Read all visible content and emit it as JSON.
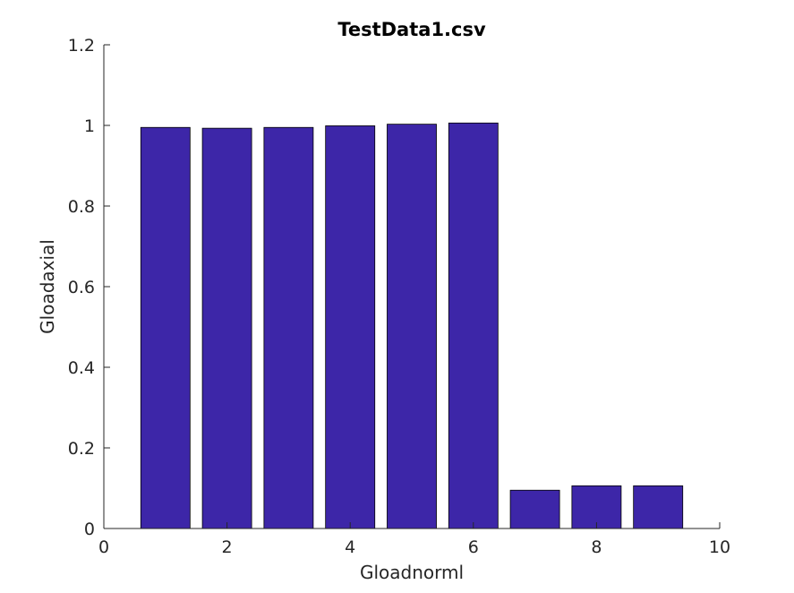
{
  "chart_data": {
    "type": "bar",
    "title": "TestData1.csv",
    "xlabel": "Gloadnorml",
    "ylabel": "Gloadaxial",
    "x": [
      1,
      2,
      3,
      4,
      5,
      6,
      7,
      8,
      9
    ],
    "values": [
      0.995,
      0.993,
      0.995,
      0.999,
      1.003,
      1.006,
      0.095,
      0.106,
      0.106
    ],
    "xlim": [
      0,
      10
    ],
    "ylim": [
      0,
      1.2
    ],
    "xticks": [
      0,
      2,
      4,
      6,
      8,
      10
    ],
    "yticks": [
      0,
      0.2,
      0.4,
      0.6,
      0.8,
      1,
      1.2
    ],
    "xtick_labels": [
      "0",
      "2",
      "4",
      "6",
      "8",
      "10"
    ],
    "ytick_labels": [
      "0",
      "0.2",
      "0.4",
      "0.6",
      "0.8",
      "1",
      "1.2"
    ],
    "bar_color": "#3d26a8",
    "grid": false,
    "legend": false
  }
}
